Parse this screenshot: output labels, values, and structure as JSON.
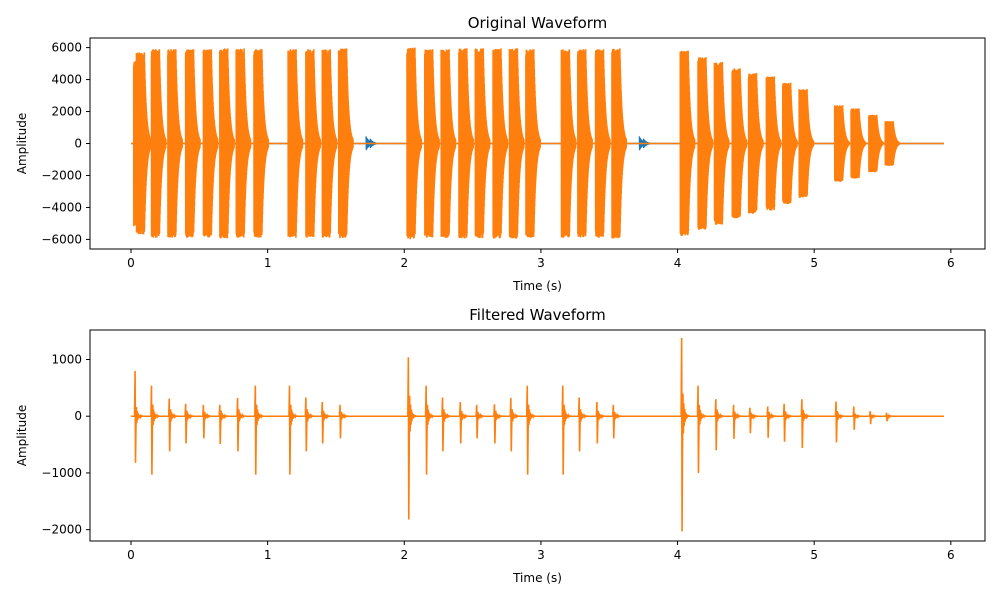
{
  "colors": {
    "series_1": "#1f77b4",
    "series_2": "#ff7f0e"
  },
  "chart_data": [
    {
      "type": "line",
      "title": "Original Waveform",
      "xlabel": "Time (s)",
      "ylabel": "Amplitude",
      "xlim": [
        -0.3,
        6.25
      ],
      "ylim": [
        -6600,
        6600
      ],
      "xticks": [
        0,
        1,
        2,
        3,
        4,
        5,
        6
      ],
      "xtick_labels": [
        "0",
        "1",
        "2",
        "3",
        "4",
        "5",
        "6"
      ],
      "yticks": [
        -6000,
        -4000,
        -2000,
        0,
        2000,
        4000,
        6000
      ],
      "ytick_labels": [
        "−6000",
        "−4000",
        "−2000",
        "0",
        "2000",
        "4000",
        "6000"
      ],
      "grid": false,
      "series": [
        {
          "color": "#1f77b4",
          "envelope": [
            {
              "x": 0.0,
              "min": -100,
              "max": 100
            },
            {
              "x": 1.73,
              "min": -450,
              "max": 450
            },
            {
              "x": 1.76,
              "min": -300,
              "max": 300
            },
            {
              "x": 3.73,
              "min": -450,
              "max": 450
            },
            {
              "x": 3.76,
              "min": -300,
              "max": 300
            }
          ]
        },
        {
          "color": "#ff7f0e",
          "bursts": [
            {
              "start": 0.02,
              "amp": 5200
            },
            {
              "start": 0.04,
              "amp": 5700
            },
            {
              "start": 0.15,
              "amp": 5900
            },
            {
              "start": 0.27,
              "amp": 5900
            },
            {
              "start": 0.4,
              "amp": 5900
            },
            {
              "start": 0.53,
              "amp": 5900
            },
            {
              "start": 0.65,
              "amp": 5950
            },
            {
              "start": 0.77,
              "amp": 5950
            },
            {
              "start": 0.9,
              "amp": 5900
            },
            {
              "start": 1.15,
              "amp": 5900
            },
            {
              "start": 1.28,
              "amp": 5900
            },
            {
              "start": 1.4,
              "amp": 5900
            },
            {
              "start": 1.52,
              "amp": 5950
            },
            {
              "start": 2.02,
              "amp": 6000
            },
            {
              "start": 2.15,
              "amp": 5900
            },
            {
              "start": 2.27,
              "amp": 5900
            },
            {
              "start": 2.4,
              "amp": 5950
            },
            {
              "start": 2.52,
              "amp": 5950
            },
            {
              "start": 2.65,
              "amp": 5950
            },
            {
              "start": 2.77,
              "amp": 5950
            },
            {
              "start": 2.89,
              "amp": 5900
            },
            {
              "start": 3.15,
              "amp": 5900
            },
            {
              "start": 3.27,
              "amp": 5900
            },
            {
              "start": 3.4,
              "amp": 5900
            },
            {
              "start": 3.52,
              "amp": 5950
            },
            {
              "start": 4.02,
              "amp": 5800
            },
            {
              "start": 4.15,
              "amp": 5400
            },
            {
              "start": 4.27,
              "amp": 5100
            },
            {
              "start": 4.4,
              "amp": 4700
            },
            {
              "start": 4.52,
              "amp": 4400
            },
            {
              "start": 4.65,
              "amp": 4200
            },
            {
              "start": 4.77,
              "amp": 3800
            },
            {
              "start": 4.89,
              "amp": 3400
            },
            {
              "start": 5.15,
              "amp": 2400
            },
            {
              "start": 5.27,
              "amp": 2200
            },
            {
              "start": 5.4,
              "amp": 1800
            },
            {
              "start": 5.52,
              "amp": 1400
            }
          ]
        }
      ]
    },
    {
      "type": "line",
      "title": "Filtered Waveform",
      "xlabel": "Time (s)",
      "ylabel": "Amplitude",
      "xlim": [
        -0.3,
        6.25
      ],
      "ylim": [
        -2200,
        1520
      ],
      "xticks": [
        0,
        1,
        2,
        3,
        4,
        5,
        6
      ],
      "xtick_labels": [
        "0",
        "1",
        "2",
        "3",
        "4",
        "5",
        "6"
      ],
      "yticks": [
        -2000,
        -1000,
        0,
        1000
      ],
      "ytick_labels": [
        "−2000",
        "−1000",
        "0",
        "1000"
      ],
      "grid": false,
      "series": [
        {
          "color": "#ff7f0e",
          "spikes": [
            {
              "x": 0.03,
              "max": 800,
              "min": -820
            },
            {
              "x": 0.15,
              "max": 540,
              "min": -1030
            },
            {
              "x": 0.28,
              "max": 310,
              "min": -620
            },
            {
              "x": 0.4,
              "max": 220,
              "min": -480
            },
            {
              "x": 0.53,
              "max": 200,
              "min": -390
            },
            {
              "x": 0.65,
              "max": 200,
              "min": -490
            },
            {
              "x": 0.78,
              "max": 320,
              "min": -620
            },
            {
              "x": 0.91,
              "max": 540,
              "min": -1030
            },
            {
              "x": 1.16,
              "max": 540,
              "min": -1030
            },
            {
              "x": 1.28,
              "max": 330,
              "min": -620
            },
            {
              "x": 1.4,
              "max": 250,
              "min": -480
            },
            {
              "x": 1.53,
              "max": 200,
              "min": -390
            },
            {
              "x": 2.03,
              "max": 1040,
              "min": -1820
            },
            {
              "x": 2.16,
              "max": 540,
              "min": -1030
            },
            {
              "x": 2.28,
              "max": 330,
              "min": -620
            },
            {
              "x": 2.41,
              "max": 250,
              "min": -480
            },
            {
              "x": 2.53,
              "max": 200,
              "min": -390
            },
            {
              "x": 2.66,
              "max": 210,
              "min": -480
            },
            {
              "x": 2.78,
              "max": 320,
              "min": -620
            },
            {
              "x": 2.9,
              "max": 540,
              "min": -1030
            },
            {
              "x": 3.16,
              "max": 540,
              "min": -1030
            },
            {
              "x": 3.28,
              "max": 330,
              "min": -620
            },
            {
              "x": 3.41,
              "max": 250,
              "min": -480
            },
            {
              "x": 3.53,
              "max": 200,
              "min": -390
            },
            {
              "x": 4.03,
              "max": 1380,
              "min": -2030
            },
            {
              "x": 4.15,
              "max": 540,
              "min": -1000
            },
            {
              "x": 4.28,
              "max": 300,
              "min": -600
            },
            {
              "x": 4.41,
              "max": 200,
              "min": -400
            },
            {
              "x": 4.53,
              "max": 150,
              "min": -300
            },
            {
              "x": 4.66,
              "max": 170,
              "min": -380
            },
            {
              "x": 4.78,
              "max": 220,
              "min": -450
            },
            {
              "x": 4.91,
              "max": 300,
              "min": -560
            },
            {
              "x": 5.16,
              "max": 260,
              "min": -460
            },
            {
              "x": 5.29,
              "max": 170,
              "min": -240
            },
            {
              "x": 5.41,
              "max": 90,
              "min": -140
            },
            {
              "x": 5.53,
              "max": 60,
              "min": -90
            }
          ]
        }
      ]
    }
  ]
}
